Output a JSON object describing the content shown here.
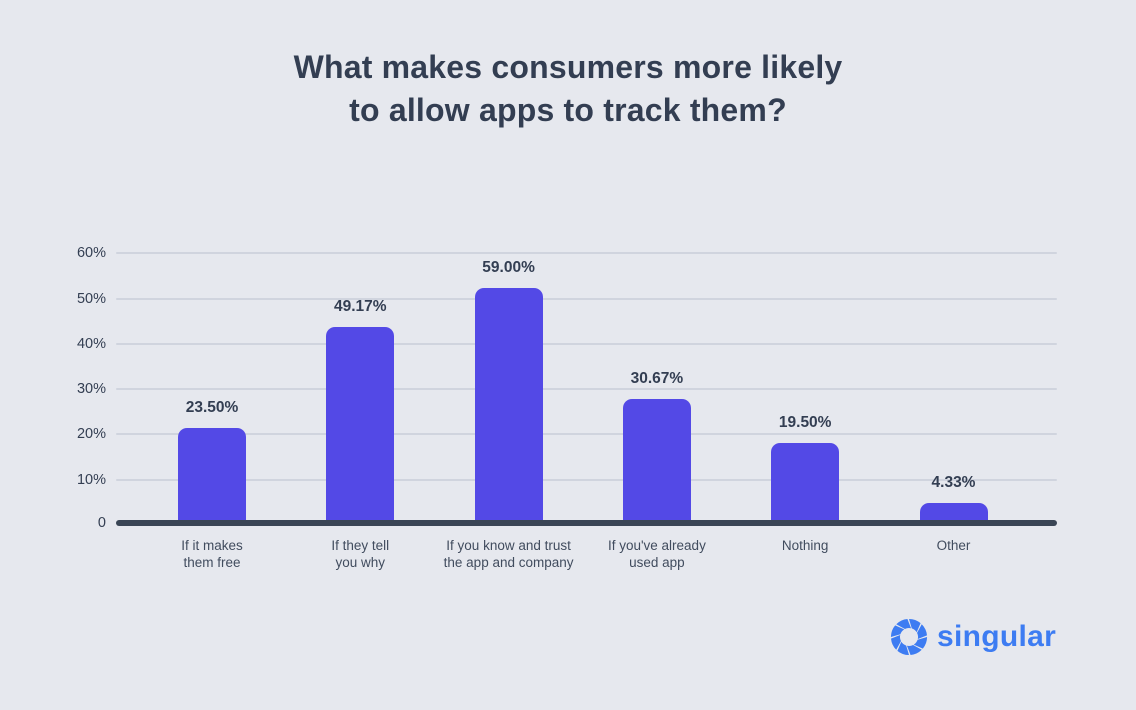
{
  "title": "What makes consumers more likely\nto allow apps to track them?",
  "chart_data": {
    "type": "bar",
    "title": "What makes consumers more likely to allow apps to track them?",
    "categories": [
      "If it makes\nthem free",
      "If they tell\nyou why",
      "If you know and trust\nthe app and company",
      "If you've already\nused app",
      "Nothing",
      "Other"
    ],
    "values": [
      23.5,
      49.17,
      59.0,
      30.67,
      19.5,
      4.33
    ],
    "value_labels": [
      "23.50%",
      "49.17%",
      "59.00%",
      "30.67%",
      "19.50%",
      "4.33%"
    ],
    "y_ticks": [
      {
        "label": "60%",
        "value": 60
      },
      {
        "label": "50%",
        "value": 50
      },
      {
        "label": "40%",
        "value": 40
      },
      {
        "label": "30%",
        "value": 30
      },
      {
        "label": "20%",
        "value": 20
      },
      {
        "label": "10%",
        "value": 10
      },
      {
        "label": "0",
        "value": 0
      }
    ],
    "xlabel": "",
    "ylabel": "",
    "ylim": [
      0,
      60
    ],
    "grid": true,
    "legend": false,
    "bar_color": "#5349e6",
    "axis_color": "#3a4555",
    "gridline_color": "#d0d4de",
    "text_color": "#333e52",
    "category_text_color": "#414c5e",
    "background_color": "#e6e8ee"
  },
  "logo": {
    "text": "singular",
    "color": "#3d7cf2",
    "icon": "aperture-swirl-icon"
  }
}
